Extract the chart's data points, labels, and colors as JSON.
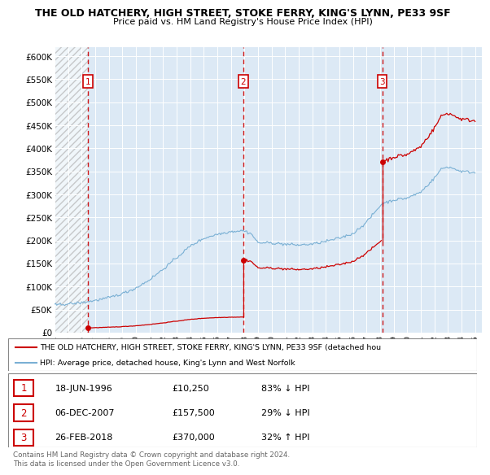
{
  "title": "THE OLD HATCHERY, HIGH STREET, STOKE FERRY, KING'S LYNN, PE33 9SF",
  "subtitle": "Price paid vs. HM Land Registry's House Price Index (HPI)",
  "transactions": [
    {
      "date_num": 1996.46,
      "price": 10250,
      "label": "1",
      "date_str": "18-JUN-1996",
      "price_str": "£10,250",
      "pct": "83% ↓ HPI"
    },
    {
      "date_num": 2007.92,
      "price": 157500,
      "label": "2",
      "date_str": "06-DEC-2007",
      "price_str": "£157,500",
      "pct": "29% ↓ HPI"
    },
    {
      "date_num": 2018.15,
      "price": 370000,
      "label": "3",
      "date_str": "26-FEB-2018",
      "price_str": "£370,000",
      "pct": "32% ↑ HPI"
    }
  ],
  "price_line_color": "#cc0000",
  "hpi_line_color": "#7ab0d4",
  "vline_color": "#cc0000",
  "xlim": [
    1994.0,
    2025.5
  ],
  "ylim": [
    0,
    620000
  ],
  "yticks": [
    0,
    50000,
    100000,
    150000,
    200000,
    250000,
    300000,
    350000,
    400000,
    450000,
    500000,
    550000,
    600000
  ],
  "ytick_labels": [
    "£0",
    "£50K",
    "£100K",
    "£150K",
    "£200K",
    "£250K",
    "£300K",
    "£350K",
    "£400K",
    "£450K",
    "£500K",
    "£550K",
    "£600K"
  ],
  "xticks": [
    1994,
    1995,
    1996,
    1997,
    1998,
    1999,
    2000,
    2001,
    2002,
    2003,
    2004,
    2005,
    2006,
    2007,
    2008,
    2009,
    2010,
    2011,
    2012,
    2013,
    2014,
    2015,
    2016,
    2017,
    2018,
    2019,
    2020,
    2021,
    2022,
    2023,
    2024,
    2025
  ],
  "legend_line1": "THE OLD HATCHERY, HIGH STREET, STOKE FERRY, KING'S LYNN, PE33 9SF (detached hou",
  "legend_line2": "HPI: Average price, detached house, King's Lynn and West Norfolk",
  "footer": "Contains HM Land Registry data © Crown copyright and database right 2024.\nThis data is licensed under the Open Government Licence v3.0.",
  "bg_color": "#ffffff",
  "plot_bg_color": "#dce9f5"
}
